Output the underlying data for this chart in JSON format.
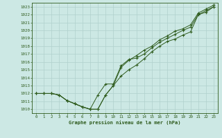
{
  "title": "Graphe pression niveau de la mer (hPa)",
  "bg_color": "#cce8e4",
  "grid_color": "#b0d0cc",
  "line_color": "#2d5a1b",
  "xlim": [
    -0.5,
    23.5
  ],
  "ylim": [
    1009.5,
    1023.5
  ],
  "yticks": [
    1010,
    1011,
    1012,
    1013,
    1014,
    1015,
    1016,
    1017,
    1018,
    1019,
    1020,
    1021,
    1022,
    1023
  ],
  "xticks": [
    0,
    1,
    2,
    3,
    4,
    5,
    6,
    7,
    8,
    9,
    10,
    11,
    12,
    13,
    14,
    15,
    16,
    17,
    18,
    19,
    20,
    21,
    22,
    23
  ],
  "series": [
    [
      1012.0,
      1012.0,
      1012.0,
      1011.8,
      1011.1,
      1010.7,
      1010.3,
      1010.0,
      1010.0,
      1011.8,
      1013.0,
      1014.2,
      1015.0,
      1015.6,
      1016.4,
      1017.3,
      1018.0,
      1018.6,
      1018.9,
      1019.4,
      1019.8,
      1022.0,
      1022.3,
      1023.0
    ],
    [
      1012.0,
      1012.0,
      1012.0,
      1011.8,
      1011.1,
      1010.7,
      1010.3,
      1010.0,
      1011.8,
      1013.2,
      1013.2,
      1015.5,
      1016.3,
      1016.5,
      1017.0,
      1017.8,
      1018.5,
      1019.0,
      1019.5,
      1020.0,
      1020.4,
      1022.0,
      1022.5,
      1023.0
    ],
    [
      1012.0,
      1012.0,
      1012.0,
      1011.8,
      1011.1,
      1010.7,
      1010.3,
      1010.0,
      1010.0,
      1011.8,
      1013.0,
      1015.3,
      1016.2,
      1016.8,
      1017.5,
      1018.0,
      1018.8,
      1019.3,
      1019.9,
      1020.2,
      1020.7,
      1022.2,
      1022.7,
      1023.2
    ]
  ]
}
